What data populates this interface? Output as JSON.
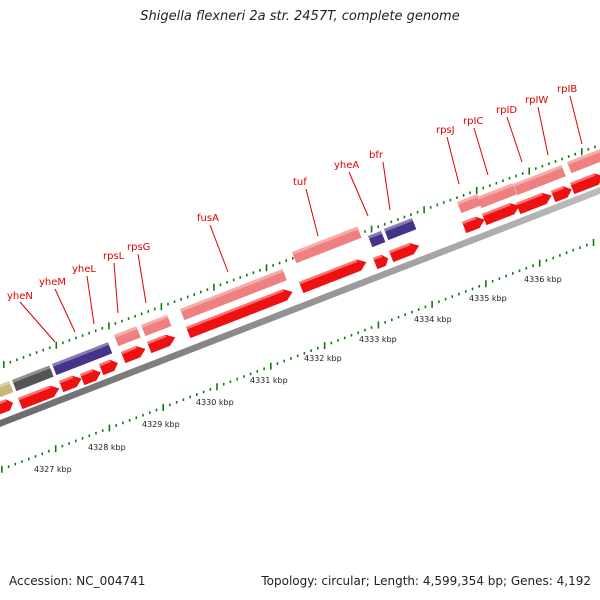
{
  "title": "Shigella flexneri 2a str. 2457T, complete genome",
  "footer": {
    "accession": "Accession: NC_004741",
    "summary": "Topology: circular; Length: 4,599,354 bp; Genes: 4,192"
  },
  "ruler_labels": [
    "4327 kbp",
    "4328 kbp",
    "4329 kbp",
    "4330 kbp",
    "4331 kbp",
    "4332 kbp",
    "4333 kbp",
    "4334 kbp",
    "4335 kbp",
    "4336 kbp"
  ],
  "gene_labels": [
    "yheN",
    "yheM",
    "yheL",
    "rpsL",
    "rpsG",
    "fusA",
    "tuf",
    "yheA",
    "bfr",
    "rpsJ",
    "rpIC",
    "rpID",
    "rpIW",
    "rpIB"
  ],
  "colors": {
    "backbone": "#888888",
    "cds": "#ee1111",
    "rrna": "#f08080",
    "protein": "#443388",
    "dark": "#555555",
    "tick": "#117711",
    "label": "#dd0000"
  }
}
